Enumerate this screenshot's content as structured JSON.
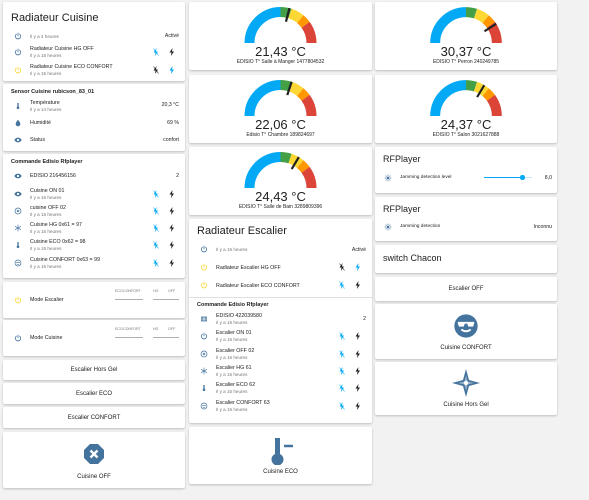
{
  "colors": {
    "accent": "#03a9f4",
    "icon": "#44739e",
    "active": "#fdd835",
    "red": "#db4437",
    "orange": "#ff9800",
    "green": "#43a047"
  },
  "radiateur_cuisine": {
    "title": "Radiateur Cuisine",
    "state_time": "Il y a 4 heures",
    "state": "Activé",
    "rows": [
      {
        "name": "Radiateur Cuisine HG OFF",
        "time": "Il y a 15 heures"
      },
      {
        "name": "Radiateur Cuisine ECO CONFORT",
        "time": "Il y a 15 heures"
      }
    ]
  },
  "sensor_cuisine": {
    "title": "Sensor Cuisine rubicson_83_01",
    "rows": [
      {
        "name": "Température",
        "time": "Il y a 14 heures",
        "value": "20,3 °C",
        "icon": "thermometer-icon"
      },
      {
        "name": "Humidité",
        "value": "69 %",
        "icon": "water-percent-icon"
      },
      {
        "name": "Status",
        "value": "confort",
        "icon": "eye-icon"
      }
    ]
  },
  "commande_cuisine": {
    "title": "Commande Edisio Rfplayer",
    "id_name": "EDISIO 216456156",
    "id_value": "2",
    "rows": [
      {
        "name": "Cuisine ON 01",
        "time": "Il y a 15 heures"
      },
      {
        "name": "cuisine OFF 02",
        "time": "Il y a 15 heures"
      },
      {
        "name": "Cuisine HG 0x61 = 97",
        "time": "Il y a 15 heures"
      },
      {
        "name": "Cuisine ECO 0x62 = 98",
        "time": "Il y a 15 heures"
      },
      {
        "name": "Cuisine CONFORT 0x63 = 99",
        "time": "Il y a 15 heures"
      }
    ]
  },
  "modes": [
    {
      "name": "Mode Escalier",
      "left_top": "ECO",
      "left_mid": "CONFORT",
      "right_top": "HG",
      "right_mid": "OFF"
    },
    {
      "name": "Mode Cuisine",
      "left_top": "ECO",
      "left_mid": "CONFORT",
      "right_top": "HG",
      "right_mid": "OFF"
    }
  ],
  "buttons_left": [
    "Escalier Hors Gel",
    "Escalier ECO",
    "Escalier CONFORT"
  ],
  "cuisine_off": {
    "label": "Cuisine OFF",
    "icon": "close-octagon-icon"
  },
  "gauges": [
    {
      "value": "21,43 °C",
      "label": "EDISIO T° Salle à Manger 1477804532",
      "level": 0.58
    },
    {
      "value": "22,06 °C",
      "label": "Edisio T° Chambre 189824697",
      "level": 0.6
    },
    {
      "value": "24,43 °C",
      "label": "EDISIO T° Salle de Bain 3289809396",
      "level": 0.67
    },
    {
      "value": "30,37 °C",
      "label": "EDISIO T° Perron 240249785",
      "level": 0.82
    },
    {
      "value": "24,37 °C",
      "label": "EDISIO T° Salon 3021627888",
      "level": 0.67
    }
  ],
  "radiateur_escalier": {
    "title": "Radiateur Escalier",
    "state_time": "Il y a 15 heures",
    "state": "Activé",
    "rows": [
      {
        "name": "Radiateur Escalier HG OFF"
      },
      {
        "name": "Radiateur Escalier ECO CONFORT"
      }
    ]
  },
  "commande_escalier": {
    "title": "Commande Edisio Rfplayer",
    "id_name": "EDISIO 422039580",
    "id_time": "Il y a 15 heures",
    "id_value": "2",
    "rows": [
      {
        "name": "Escalier ON 01",
        "time": "Il y a 15 heures"
      },
      {
        "name": "Escalier OFF 02",
        "time": "Il y a 15 heures"
      },
      {
        "name": "Escalier HG 61",
        "time": "Il y a 15 heures"
      },
      {
        "name": "Escalier ECO 62",
        "time": "Il y a 15 heures"
      },
      {
        "name": "Escalier CONFORT 63",
        "time": "Il y a 15 heures"
      }
    ]
  },
  "cuisine_eco": {
    "label": "Cuisine ECO",
    "icon": "thermometer-minus-icon"
  },
  "rfplayer1": {
    "title": "RFPlayer",
    "row": "Jamming detection level",
    "value": "8,0",
    "level": 0.8
  },
  "rfplayer2": {
    "title": "RFPlayer",
    "row": "Jamming detection",
    "value": "Inconnu"
  },
  "switch_chacon": {
    "title": "switch Chacon"
  },
  "escalier_off": {
    "label": "Escalier OFF"
  },
  "cuisine_confort": {
    "label": "Cuisine CONFORT",
    "icon": "emoticon-cool-icon"
  },
  "cuisine_hors_gel": {
    "label": "Cuisine Hors Gel",
    "icon": "snowflake-icon"
  }
}
